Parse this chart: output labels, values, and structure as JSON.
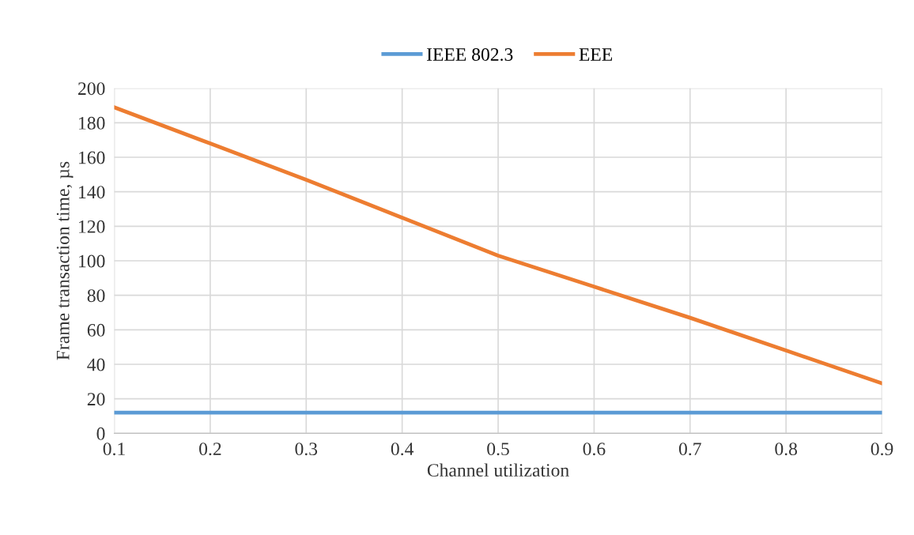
{
  "chart_data": {
    "type": "line",
    "xlabel": "Channel utilization",
    "ylabel": "Frame transaction time, µs",
    "x": [
      0.1,
      0.2,
      0.3,
      0.4,
      0.5,
      0.6,
      0.7,
      0.8,
      0.9
    ],
    "series": [
      {
        "name": "IEEE 802.3",
        "color": "#5b9bd5",
        "values": [
          12,
          12,
          12,
          12,
          12,
          12,
          12,
          12,
          12
        ]
      },
      {
        "name": "EEE",
        "color": "#ed7d31",
        "values": [
          189,
          168,
          147,
          125,
          103,
          85,
          67,
          48,
          29
        ]
      }
    ],
    "xlim": [
      0.1,
      0.9
    ],
    "xticks": [
      0.1,
      0.2,
      0.3,
      0.4,
      0.5,
      0.6,
      0.7,
      0.8,
      0.9
    ],
    "ylim": [
      0,
      200
    ],
    "yticks": [
      0,
      20,
      40,
      60,
      80,
      100,
      120,
      140,
      160,
      180,
      200
    ],
    "grid": true,
    "legend": "top",
    "marker": "none",
    "line_style": "solid"
  }
}
